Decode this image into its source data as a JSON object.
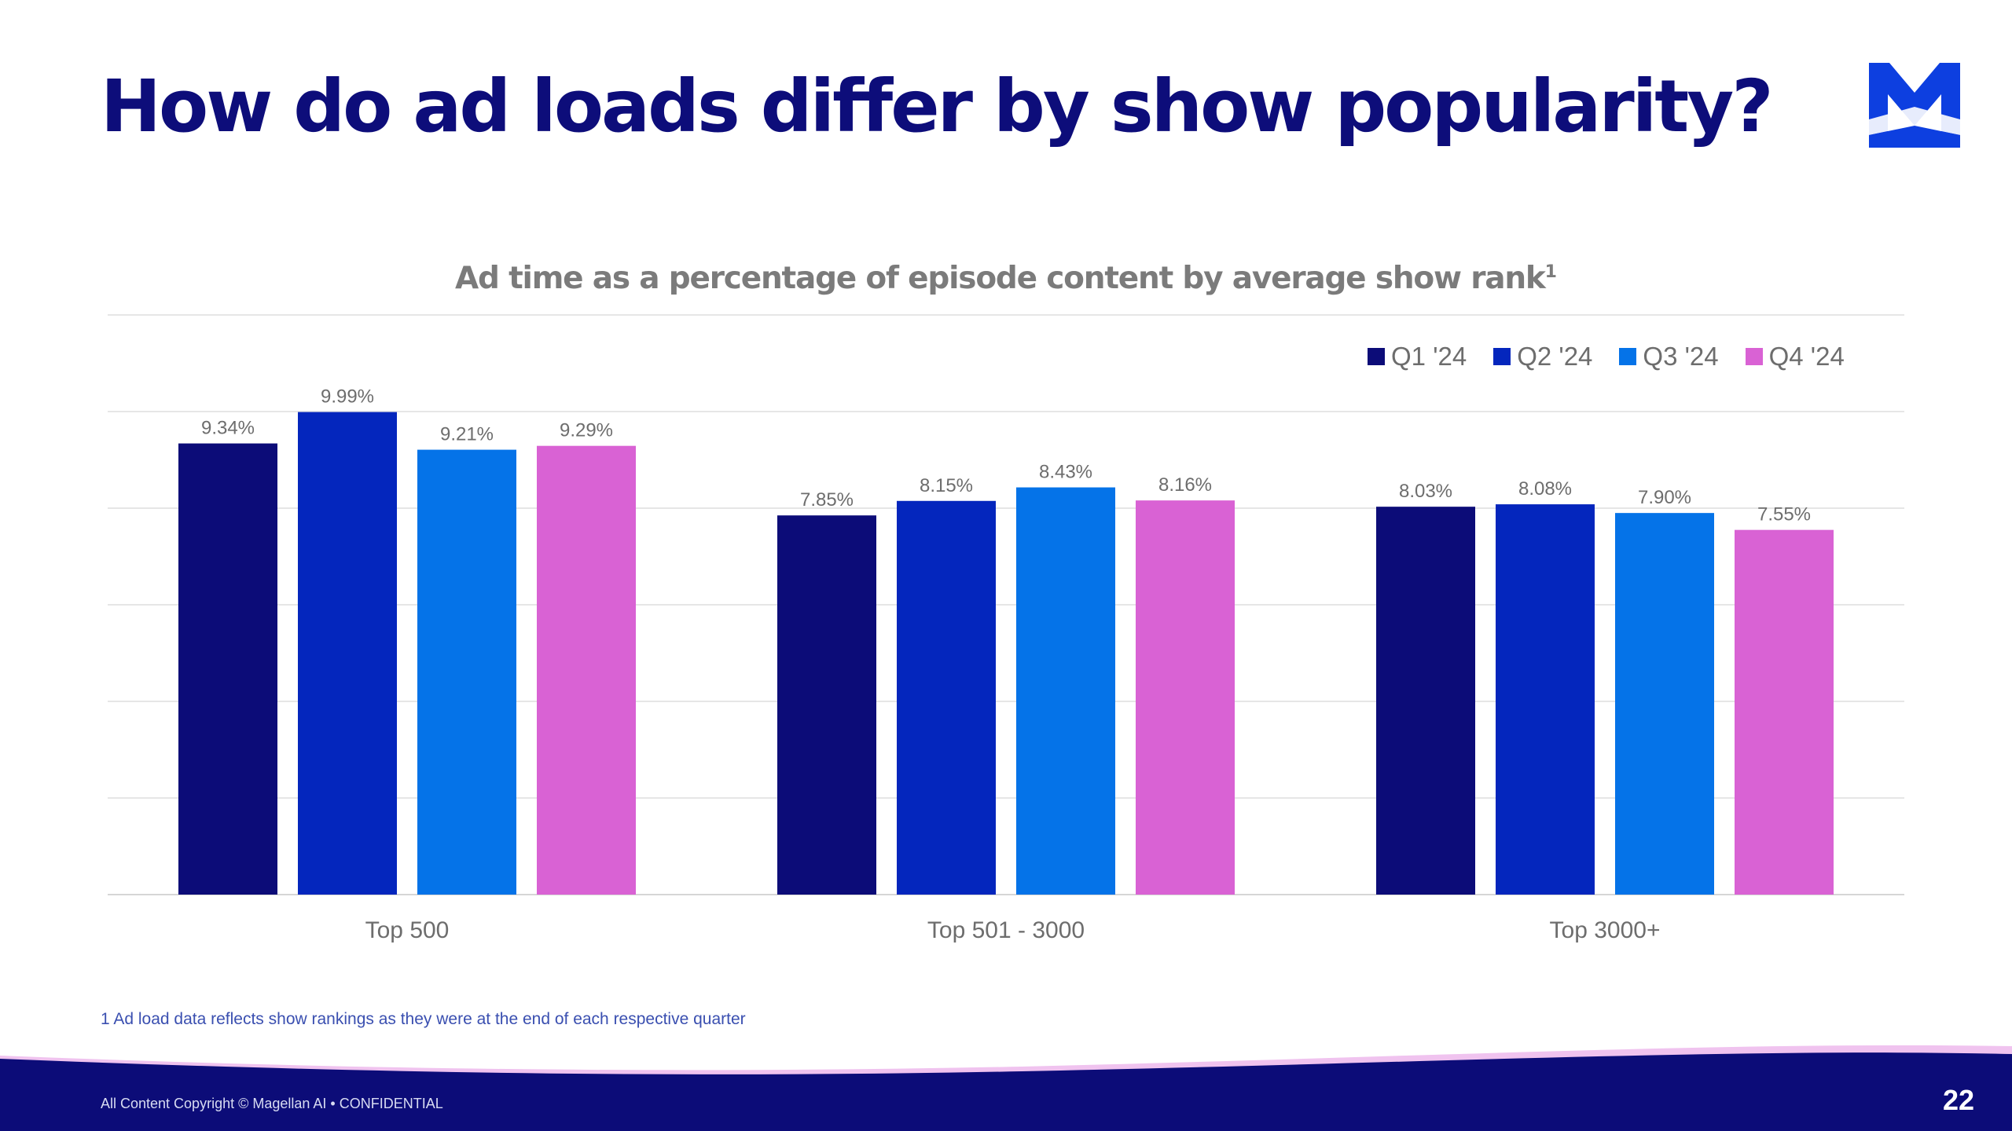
{
  "slide": {
    "title": "How do ad loads differ by show popularity?",
    "footnote": "1 Ad load data reflects show rankings as they were at the end of each respective quarter",
    "copyright": "All Content Copyright © Magellan AI • CONFIDENTIAL",
    "page_number": "22",
    "logo_letter": "M"
  },
  "colors": {
    "title": "#0d0d7a",
    "footer": "#0c0c78",
    "footer_accent": "#f0c3ef",
    "q1": "#0c0c78",
    "q2": "#0426bd",
    "q3": "#0573e8",
    "q4": "#d962d4"
  },
  "chart_data": {
    "type": "bar",
    "title": "Ad time as a percentage of episode content by average show rank",
    "title_superscript": "1",
    "categories": [
      "Top 500",
      "Top 501 - 3000",
      "Top 3000+"
    ],
    "series": [
      {
        "name": "Q1 '24",
        "color": "#0c0c78",
        "values": [
          9.34,
          7.85,
          8.03
        ],
        "labels": [
          "9.34%",
          "7.85%",
          "8.03%"
        ]
      },
      {
        "name": "Q2 '24",
        "color": "#0426bd",
        "values": [
          9.99,
          8.15,
          8.08
        ],
        "labels": [
          "9.99%",
          "8.15%",
          "8.08%"
        ]
      },
      {
        "name": "Q3 '24",
        "color": "#0573e8",
        "values": [
          9.21,
          8.43,
          7.9
        ],
        "labels": [
          "9.21%",
          "8.43%",
          "7.90%"
        ]
      },
      {
        "name": "Q4 '24",
        "color": "#d962d4",
        "values": [
          9.29,
          8.16,
          7.55
        ],
        "labels": [
          "9.29%",
          "8.16%",
          "7.55%"
        ]
      }
    ],
    "ylim": [
      0,
      12
    ],
    "ytick_step": 2,
    "grid": true,
    "legend_position": "top-right",
    "xlabel": "",
    "ylabel": ""
  }
}
